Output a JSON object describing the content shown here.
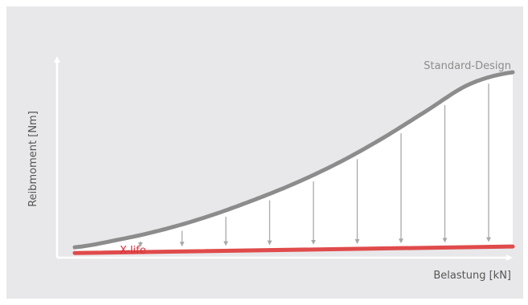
{
  "chart_data": {
    "type": "line",
    "title": "",
    "xlabel": "Belastung [kN]",
    "ylabel": "Reibmoment [Nm]",
    "xlim": [
      0,
      1
    ],
    "ylim": [
      0,
      1
    ],
    "grid": false,
    "series": [
      {
        "name": "Standard-Design",
        "color": "#8c8c8c",
        "x": [
          0,
          0.1,
          0.2,
          0.3,
          0.4,
          0.5,
          0.6,
          0.7,
          0.8,
          0.9,
          1.0
        ],
        "y": [
          0.056,
          0.097,
          0.15,
          0.219,
          0.303,
          0.398,
          0.509,
          0.64,
          0.787,
          0.934,
          1.0
        ]
      },
      {
        "name": "X-life",
        "color": "#e04b4b",
        "x": [
          0,
          1.0
        ],
        "y": [
          0.025,
          0.06
        ]
      }
    ],
    "reduction_arrows_x": [
      0.15,
      0.245,
      0.345,
      0.445,
      0.545,
      0.645,
      0.745,
      0.845,
      0.945
    ],
    "colors": {
      "background": "#e8e8ea",
      "fill": "#ffffff",
      "arrow": "#a9a9a9",
      "x_life_label": "#d6303a",
      "standard_label": "#8c8c8c",
      "axis_label": "#555555"
    }
  }
}
